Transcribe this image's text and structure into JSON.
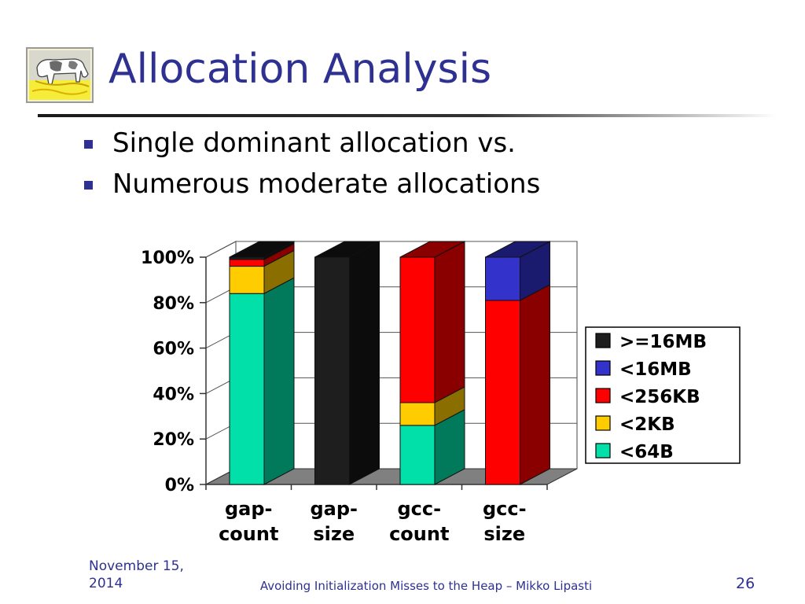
{
  "slide": {
    "title": "Allocation Analysis",
    "bullets": [
      "Single dominant allocation vs.",
      "Numerous moderate allocations"
    ],
    "footer": {
      "date": "November 15, 2014",
      "center": "Avoiding Initialization Misses to the Heap – Mikko Lipasti",
      "page": "26"
    },
    "logo_icon": "grazing-cow-icon"
  },
  "chart_data": {
    "type": "bar",
    "stacked": true,
    "three_d": true,
    "categories": [
      [
        "gap-",
        "count"
      ],
      [
        "gap-",
        "size"
      ],
      [
        "gcc-",
        "count"
      ],
      [
        "gcc-",
        "size"
      ]
    ],
    "ylim": [
      0,
      100
    ],
    "y_ticks": [
      "0%",
      "20%",
      "40%",
      "60%",
      "80%",
      "100%"
    ],
    "y_tick_values": [
      0,
      20,
      40,
      60,
      80,
      100
    ],
    "legend_position": "right",
    "series": [
      {
        "name": "<64B",
        "color": "#00e0a8",
        "side_color": "#007a5a",
        "values": [
          84,
          0,
          26,
          0
        ]
      },
      {
        "name": "<2KB",
        "color": "#ffcc00",
        "side_color": "#8a6e00",
        "values": [
          12,
          0,
          10,
          0
        ]
      },
      {
        "name": "<256KB",
        "color": "#ff0000",
        "side_color": "#8a0000",
        "values": [
          3,
          0,
          64,
          81
        ]
      },
      {
        "name": "<16MB",
        "color": "#3333cc",
        "side_color": "#1a1a6e",
        "values": [
          0,
          0,
          0,
          19
        ]
      },
      {
        "name": ">=16MB",
        "color": "#1e1e1e",
        "side_color": "#0c0c0c",
        "values": [
          1,
          100,
          0,
          0
        ]
      }
    ]
  }
}
